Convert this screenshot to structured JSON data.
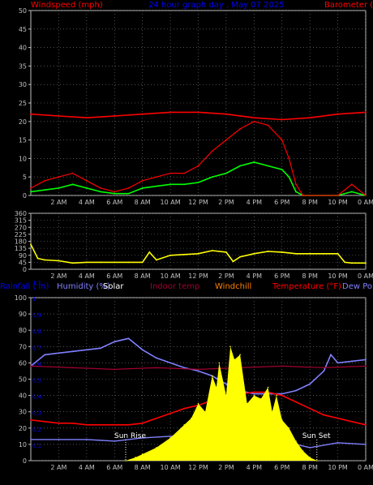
{
  "header": {
    "left_label": "Windspeed (mph)",
    "title": "24 hour graph day , May 07 2025",
    "right_label": "Barometer ("
  },
  "legend_row": {
    "rainfall": "Rainfall ( in)",
    "humidity": "Humidity (%)",
    "solar": "Solar",
    "indoor_temp": "Indoor temp",
    "windchill": "Windchill",
    "temperature": "Temperature (°F)",
    "dew_point": "Dew Po"
  },
  "annotations": {
    "sun_rise": "Sun Rise",
    "sun_set": "Sun Set"
  },
  "colors": {
    "windspeed": "#ff0000",
    "gust_avg": "#00ff00",
    "barometer": "#ff0000",
    "direction": "#ffff00",
    "solar": "#ffff00",
    "humidity": "#8080ff",
    "temperature": "#ff0000",
    "indoor_temp": "#a00030",
    "dew_point": "#8080ff",
    "axis_left": "#0000ff",
    "axis_right": "#ff0000",
    "grid": "#808080"
  },
  "chart_data": [
    {
      "type": "line",
      "title": "24 hour graph day , May 07 2025",
      "ylabel": "Windspeed (mph)",
      "ylabel_right": "Barometer (",
      "xlim": [
        0,
        24
      ],
      "ylim": [
        0,
        50
      ],
      "x_ticks": [
        "2 AM",
        "4 AM",
        "6 AM",
        "8 AM",
        "10 AM",
        "12 PM",
        "2 PM",
        "4 PM",
        "6 PM",
        "8 PM",
        "10 PM",
        "0 AM"
      ],
      "y_ticks": [
        0,
        5,
        10,
        15,
        20,
        25,
        30,
        35,
        40,
        45,
        50
      ],
      "grid": true,
      "series": [
        {
          "key": "barometer",
          "x": [
            0,
            2,
            4,
            6,
            8,
            10,
            12,
            14,
            16,
            18,
            20,
            22,
            24
          ],
          "values": [
            22,
            21.5,
            21,
            21.5,
            22,
            22.5,
            22.5,
            22,
            21,
            20.5,
            21,
            22,
            22.5
          ]
        },
        {
          "key": "wind_avg",
          "x": [
            0,
            1,
            2,
            3,
            4,
            5,
            6,
            7,
            8,
            9,
            10,
            11,
            12,
            13,
            14,
            15,
            16,
            17,
            18,
            18.5,
            19,
            19.5,
            20,
            21,
            22,
            23,
            24
          ],
          "values": [
            1,
            1.5,
            2,
            3,
            2,
            1,
            0.5,
            0.5,
            2,
            2.5,
            3,
            3,
            3.5,
            5,
            6,
            8,
            9,
            8,
            7,
            5,
            1,
            0,
            0,
            0,
            0,
            1,
            0
          ]
        },
        {
          "key": "wind_gust",
          "x": [
            0,
            1,
            2,
            3,
            4,
            5,
            6,
            7,
            8,
            9,
            10,
            11,
            12,
            13,
            14,
            15,
            16,
            17,
            18,
            18.5,
            19,
            19.5,
            20,
            21,
            22,
            23,
            24
          ],
          "values": [
            2,
            4,
            5,
            6,
            4,
            2,
            1,
            2,
            4,
            5,
            6,
            6,
            8,
            12,
            15,
            18,
            20,
            19,
            15,
            10,
            3,
            0,
            0,
            0,
            0,
            3,
            0
          ]
        }
      ]
    },
    {
      "type": "line",
      "title": "",
      "ylabel": "",
      "xlim": [
        0,
        24
      ],
      "ylim": [
        0,
        360
      ],
      "y_ticks": [
        0,
        45,
        90,
        135,
        180,
        225,
        270,
        315,
        360
      ],
      "grid": true,
      "series": [
        {
          "key": "direction",
          "x": [
            0,
            0.5,
            1,
            2,
            3,
            4,
            5,
            6,
            7,
            8,
            8.5,
            9,
            10,
            11,
            12,
            13,
            14,
            14.5,
            15,
            16,
            17,
            18,
            19,
            20,
            21,
            22,
            22.5,
            23,
            24
          ],
          "values": [
            160,
            70,
            60,
            55,
            40,
            45,
            45,
            45,
            45,
            45,
            110,
            60,
            90,
            95,
            100,
            120,
            110,
            50,
            80,
            100,
            115,
            110,
            100,
            100,
            100,
            100,
            45,
            40,
            40
          ]
        }
      ]
    },
    {
      "type": "line",
      "title": "",
      "ylabel": "Humidity (%)",
      "xlim": [
        0,
        24
      ],
      "ylim": [
        0,
        100
      ],
      "y_ticks": [
        0,
        10,
        20,
        30,
        40,
        50,
        60,
        70,
        80,
        90,
        100
      ],
      "right_ticks": [
        "0.1",
        "0.2",
        "0.3",
        "0.4",
        "0.5",
        "0.6",
        "0.7",
        "0.8",
        "0.9",
        "1",
        "1.1"
      ],
      "grid": true,
      "series": [
        {
          "key": "humidity",
          "x": [
            0,
            1,
            2,
            3,
            4,
            5,
            6,
            7,
            8,
            9,
            10,
            11,
            12,
            13,
            14,
            15,
            16,
            17,
            18,
            19,
            20,
            21,
            21.5,
            22,
            23,
            24
          ],
          "values": [
            58,
            65,
            66,
            67,
            68,
            69,
            73,
            75,
            68,
            63,
            60,
            57,
            55,
            52,
            47,
            43,
            41,
            41,
            41,
            43,
            47,
            55,
            65,
            60,
            61,
            62
          ]
        },
        {
          "key": "indoor_temp",
          "x": [
            0,
            3,
            6,
            9,
            12,
            15,
            18,
            21,
            24
          ],
          "values": [
            58,
            57,
            56,
            57,
            56,
            57,
            58,
            57,
            58
          ]
        },
        {
          "key": "temperature",
          "x": [
            0,
            1,
            2,
            3,
            4,
            5,
            6,
            7,
            8,
            9,
            10,
            11,
            12,
            13,
            14,
            15,
            16,
            17,
            18,
            19,
            20,
            21,
            22,
            23,
            24
          ],
          "values": [
            25,
            24,
            23,
            23,
            22,
            22,
            22,
            22,
            23,
            26,
            29,
            32,
            34,
            37,
            40,
            41,
            42,
            42,
            40,
            36,
            32,
            28,
            26,
            24,
            22
          ]
        },
        {
          "key": "dew_point",
          "x": [
            0,
            2,
            4,
            6,
            8,
            10,
            12,
            14,
            16,
            18,
            19,
            20,
            22,
            24
          ],
          "values": [
            13,
            13,
            13,
            12,
            14,
            15,
            16,
            16,
            16,
            15,
            10,
            8,
            11,
            10
          ]
        },
        {
          "key": "solar",
          "x": [
            6.8,
            7.5,
            8,
            9,
            10,
            11,
            11.5,
            12,
            12.5,
            13,
            13.3,
            13.5,
            14,
            14.3,
            14.6,
            15,
            15.5,
            16,
            16.5,
            17,
            17.3,
            17.6,
            18,
            18.5,
            19,
            19.5,
            20,
            20.5
          ],
          "values": [
            0,
            2,
            4,
            8,
            14,
            22,
            26,
            35,
            30,
            52,
            45,
            60,
            40,
            70,
            62,
            65,
            35,
            40,
            38,
            45,
            30,
            40,
            25,
            20,
            12,
            6,
            2,
            0
          ]
        }
      ],
      "sun_rise_x": 6.8,
      "sun_set_x": 20.5
    }
  ]
}
